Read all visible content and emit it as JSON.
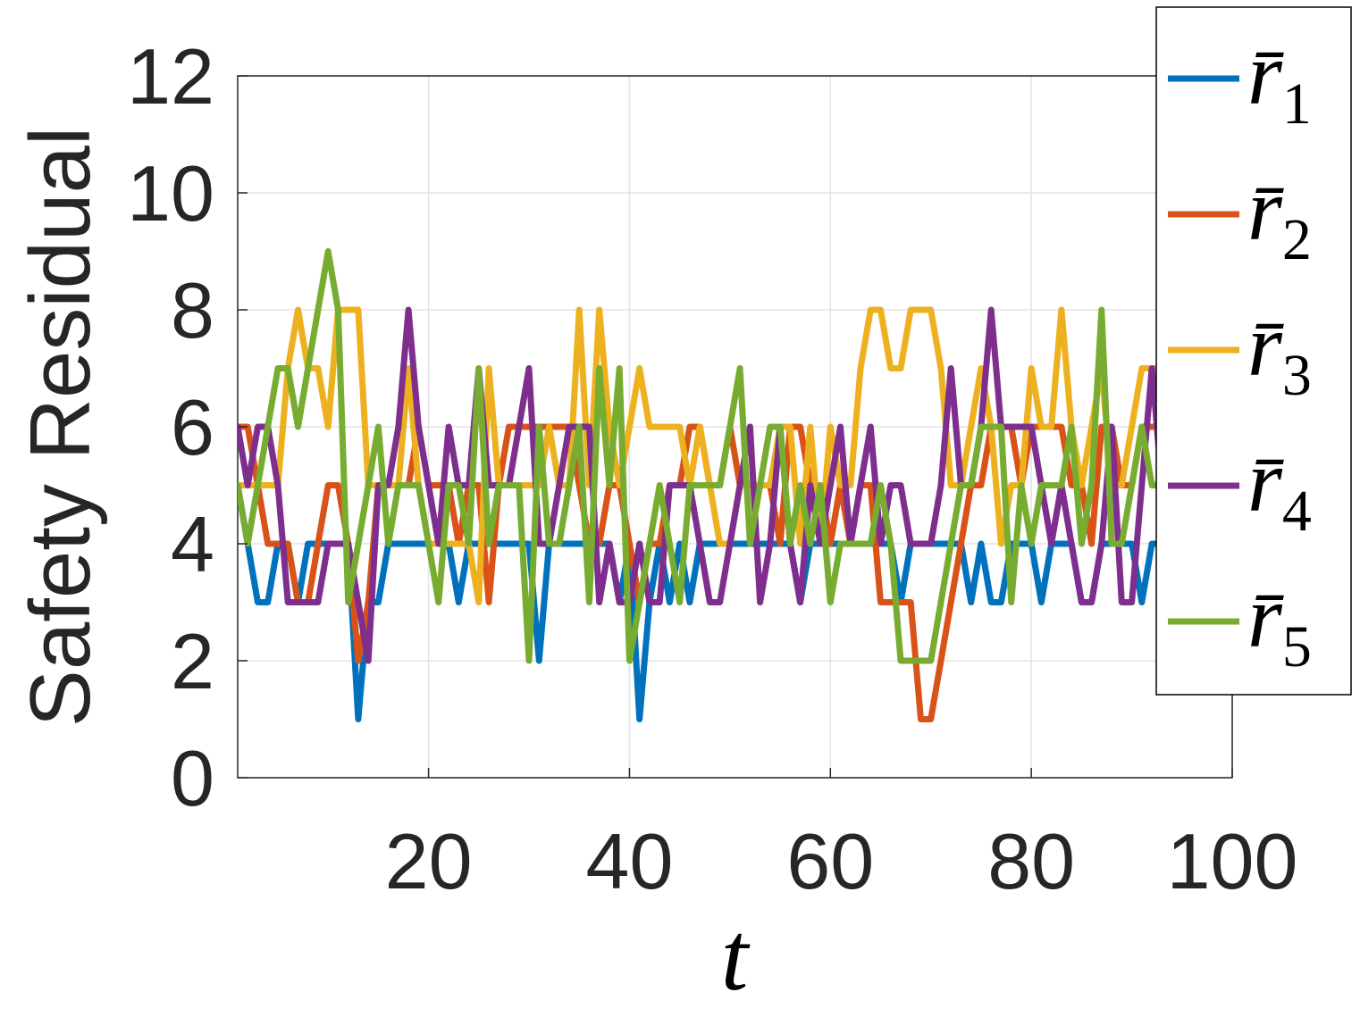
{
  "chart_data": {
    "type": "line",
    "xlabel": "t",
    "ylabel": "Safety Residual",
    "xlim": [
      1,
      100
    ],
    "ylim": [
      0,
      12
    ],
    "xticks": [
      20,
      40,
      60,
      80,
      100
    ],
    "yticks": [
      0,
      2,
      4,
      6,
      8,
      10,
      12
    ],
    "grid": true,
    "legend_position": "top-right",
    "x": [
      1,
      2,
      3,
      4,
      5,
      6,
      7,
      8,
      9,
      10,
      11,
      12,
      13,
      14,
      15,
      16,
      17,
      18,
      19,
      20,
      21,
      22,
      23,
      24,
      25,
      26,
      27,
      28,
      29,
      30,
      31,
      32,
      33,
      34,
      35,
      36,
      37,
      38,
      39,
      40,
      41,
      42,
      43,
      44,
      45,
      46,
      47,
      48,
      49,
      50,
      51,
      52,
      53,
      54,
      55,
      56,
      57,
      58,
      59,
      60,
      61,
      62,
      63,
      64,
      65,
      66,
      67,
      68,
      69,
      70,
      71,
      72,
      73,
      74,
      75,
      76,
      77,
      78,
      79,
      80,
      81,
      82,
      83,
      84,
      85,
      86,
      87,
      88,
      89,
      90,
      91,
      92,
      93,
      94,
      95,
      96,
      97,
      98,
      99,
      100
    ],
    "series": [
      {
        "name": "r̄",
        "subscript": "1",
        "color": "#0072BD",
        "values": [
          5,
          4,
          3,
          3,
          4,
          4,
          3,
          4,
          4,
          4,
          4,
          4,
          1,
          3,
          3,
          4,
          4,
          4,
          4,
          4,
          4,
          4,
          3,
          4,
          4,
          4,
          4,
          4,
          4,
          4,
          2,
          4,
          4,
          4,
          4,
          4,
          4,
          4,
          3,
          4,
          1,
          3,
          4,
          3,
          4,
          3,
          4,
          4,
          4,
          4,
          4,
          4,
          4,
          4,
          4,
          4,
          3,
          4,
          4,
          4,
          4,
          4,
          4,
          4,
          4,
          4,
          3,
          4,
          4,
          4,
          4,
          4,
          4,
          3,
          4,
          3,
          3,
          4,
          4,
          4,
          3,
          4,
          4,
          4,
          3,
          3,
          4,
          4,
          4,
          4,
          3,
          4,
          4,
          4,
          4,
          4,
          4,
          4,
          4,
          4
        ]
      },
      {
        "name": "r̄",
        "subscript": "2",
        "color": "#D95319",
        "values": [
          6,
          6,
          5,
          4,
          4,
          4,
          3,
          3,
          4,
          5,
          5,
          4,
          2,
          3,
          5,
          5,
          5,
          5,
          6,
          5,
          5,
          5,
          4,
          5,
          5,
          3,
          5,
          6,
          6,
          6,
          6,
          6,
          6,
          6,
          5,
          4,
          4,
          5,
          5,
          4,
          3,
          4,
          4,
          5,
          5,
          6,
          6,
          5,
          5,
          6,
          5,
          5,
          5,
          5,
          4,
          6,
          6,
          5,
          5,
          4,
          5,
          4,
          5,
          5,
          3,
          3,
          3,
          3,
          1,
          1,
          2,
          3,
          4,
          5,
          5,
          6,
          6,
          6,
          5,
          6,
          6,
          6,
          6,
          5,
          5,
          4,
          6,
          6,
          5,
          5,
          6,
          6,
          6,
          6,
          6,
          6,
          6,
          6,
          6,
          6
        ]
      },
      {
        "name": "r̄",
        "subscript": "3",
        "color": "#EDB120",
        "values": [
          5,
          5,
          5,
          5,
          5,
          7,
          8,
          7,
          7,
          6,
          8,
          8,
          8,
          5,
          5,
          5,
          5,
          7,
          5,
          4,
          4,
          4,
          4,
          4,
          3,
          7,
          5,
          5,
          5,
          5,
          5,
          6,
          5,
          5,
          8,
          5,
          8,
          6,
          5,
          6,
          7,
          6,
          6,
          6,
          6,
          5,
          6,
          5,
          4,
          4,
          5,
          5,
          5,
          5,
          6,
          6,
          4,
          6,
          4,
          6,
          5,
          5,
          7,
          8,
          8,
          7,
          7,
          8,
          8,
          8,
          7,
          5,
          5,
          6,
          7,
          6,
          4,
          5,
          5,
          7,
          6,
          6,
          8,
          6,
          5,
          6,
          7,
          5,
          5,
          6,
          7,
          7,
          7,
          7,
          7,
          7,
          7,
          7,
          7,
          7
        ]
      },
      {
        "name": "r̄",
        "subscript": "4",
        "color": "#7E2F8E",
        "values": [
          6,
          5,
          6,
          6,
          5,
          3,
          3,
          3,
          3,
          4,
          4,
          4,
          3,
          2,
          5,
          5,
          6,
          8,
          6,
          5,
          4,
          6,
          5,
          5,
          7,
          5,
          5,
          5,
          6,
          7,
          4,
          4,
          5,
          6,
          6,
          6,
          3,
          4,
          3,
          3,
          4,
          3,
          3,
          5,
          5,
          5,
          4,
          3,
          3,
          4,
          5,
          6,
          3,
          4,
          6,
          4,
          3,
          5,
          4,
          5,
          6,
          4,
          5,
          6,
          4,
          5,
          5,
          4,
          4,
          4,
          5,
          7,
          5,
          5,
          6,
          8,
          6,
          6,
          6,
          6,
          5,
          4,
          5,
          4,
          3,
          3,
          4,
          6,
          3,
          3,
          5,
          7,
          5,
          5,
          5,
          5,
          5,
          5,
          5,
          5
        ]
      },
      {
        "name": "r̄",
        "subscript": "5",
        "color": "#77AC30",
        "values": [
          5,
          4,
          5,
          6,
          7,
          7,
          6,
          7,
          8,
          9,
          8,
          3,
          4,
          5,
          6,
          4,
          5,
          5,
          5,
          4,
          3,
          5,
          5,
          4,
          7,
          4,
          5,
          5,
          5,
          2,
          6,
          4,
          4,
          5,
          6,
          3,
          7,
          5,
          7,
          2,
          3,
          4,
          5,
          4,
          3,
          5,
          5,
          5,
          5,
          6,
          7,
          4,
          5,
          6,
          6,
          4,
          5,
          4,
          5,
          3,
          4,
          4,
          4,
          4,
          5,
          4,
          2,
          2,
          2,
          2,
          3,
          4,
          5,
          5,
          6,
          6,
          6,
          3,
          5,
          4,
          5,
          5,
          5,
          6,
          4,
          5,
          8,
          4,
          4,
          5,
          6,
          5,
          5,
          5,
          5,
          5,
          5,
          5,
          5,
          5
        ]
      }
    ]
  }
}
